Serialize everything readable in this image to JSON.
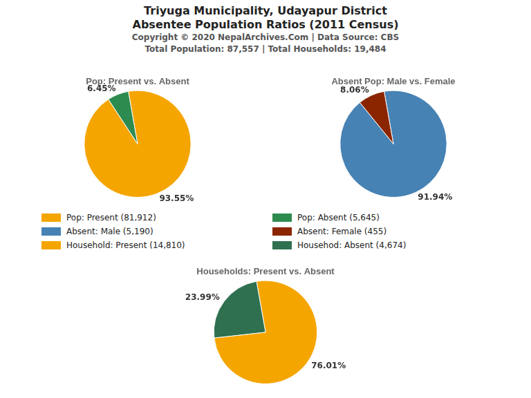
{
  "title": [
    "Triyuga Municipality, Udayapur District",
    "Absentee Population Ratios (2011 Census)"
  ],
  "annotations": [
    "Copyright © 2020 NepalArchives.Com | Data Source: CBS",
    "Total Population: 87,557 | Total Households: 19,484"
  ],
  "chart_data": [
    {
      "type": "pie",
      "title": "Pop: Present vs. Absent",
      "categories": [
        "Pop: Present (81,912)",
        "Pop: Absent (5,645)"
      ],
      "values": [
        93.55,
        6.45
      ],
      "value_labels": [
        "93.55%",
        "6.45%"
      ],
      "colors": [
        "#F5A500",
        "#2E8B50"
      ],
      "data_labels": true
    },
    {
      "type": "pie",
      "title": "Absent Pop: Male vs. Female",
      "categories": [
        "Absent: Male (5,190)",
        "Absent: Female (455)"
      ],
      "values": [
        91.94,
        8.06
      ],
      "value_labels": [
        "91.94%",
        "8.06%"
      ],
      "colors": [
        "#4682B4",
        "#8B2500"
      ],
      "data_labels": true
    },
    {
      "type": "pie",
      "title": "Households: Present vs. Absent",
      "categories": [
        "Household: Present (14,810)",
        "Househod: Absent (4,674)"
      ],
      "values": [
        76.01,
        23.99
      ],
      "value_labels": [
        "76.01%",
        "23.99%"
      ],
      "colors": [
        "#F5A500",
        "#2E7050"
      ],
      "data_labels": true
    }
  ]
}
